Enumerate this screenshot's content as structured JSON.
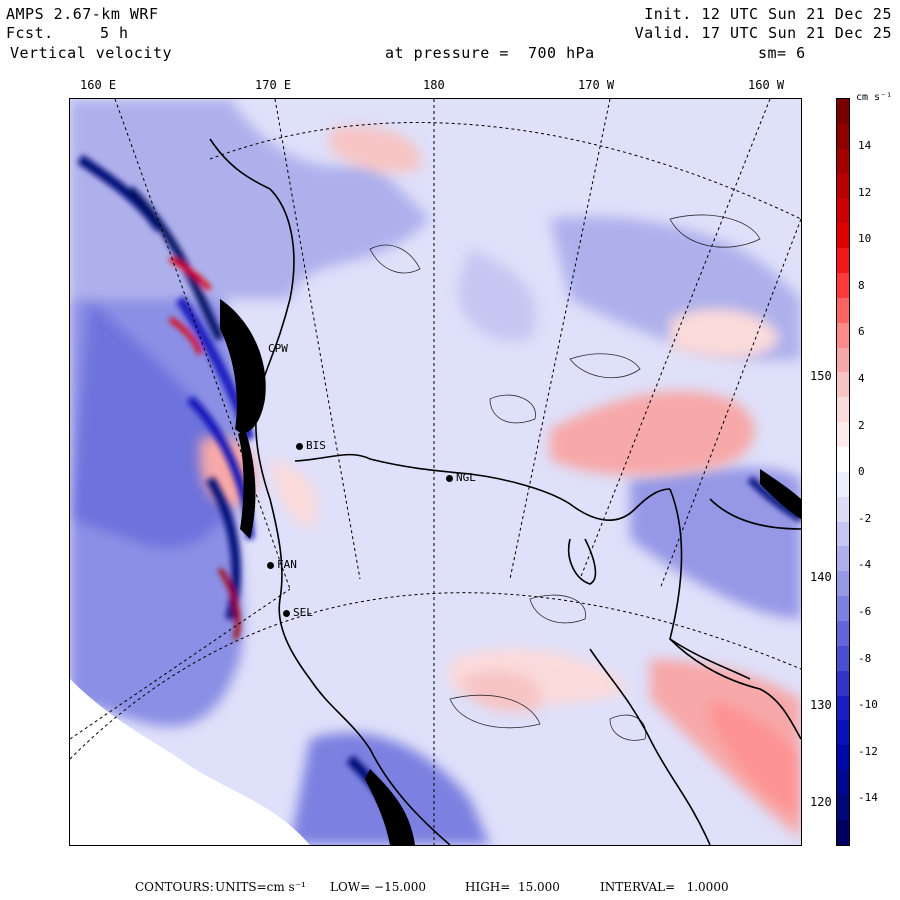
{
  "header": {
    "model": "AMPS 2.67-km WRF",
    "fcst_label": "Fcst.",
    "fcst_value": "5 h",
    "field": "Vertical velocity",
    "init": "Init. 12 UTC Sun 21 Dec 25",
    "valid": "Valid. 17 UTC Sun 21 Dec 25",
    "level": "at pressure =  700 hPa",
    "smooth": "sm= 6"
  },
  "longitudes": [
    "160 E",
    "170 E",
    "180",
    "170 W",
    "160 W"
  ],
  "latitudes": [
    "150 W",
    "140 W",
    "130 W",
    "120 W"
  ],
  "stations": [
    "CPW",
    "BIS",
    "NGL",
    "FAN",
    "SEL"
  ],
  "colorbar": {
    "unit": "cm s⁻¹",
    "labels": [
      "14",
      "12",
      "10",
      "8",
      "6",
      "4",
      "2",
      "0",
      "-2",
      "-4",
      "-6",
      "-8",
      "-10",
      "-12",
      "-14"
    ],
    "colors": [
      "#7a0000",
      "#8f0000",
      "#a30000",
      "#b80000",
      "#cc0000",
      "#e00000",
      "#f21818",
      "#ff3a3a",
      "#ff6464",
      "#ff8a8a",
      "#f7a8a8",
      "#f7c4c4",
      "#fbdada",
      "#fdeaea",
      "#ffffff",
      "#eeeefc",
      "#dcdcf7",
      "#c6c6f2",
      "#aeb0ec",
      "#9698e6",
      "#7c80e0",
      "#6266d8",
      "#4a4ed0",
      "#3034c8",
      "#1a1ec0",
      "#0a10b8",
      "#0008a8",
      "#000890",
      "#000878",
      "#000060"
    ]
  },
  "footer": {
    "contours": "CONTOURS:",
    "units": "UNITS=cm s⁻¹",
    "low": "LOW= −15.000",
    "high": "HIGH=  15.000",
    "interval": "INTERVAL=   1.0000"
  }
}
